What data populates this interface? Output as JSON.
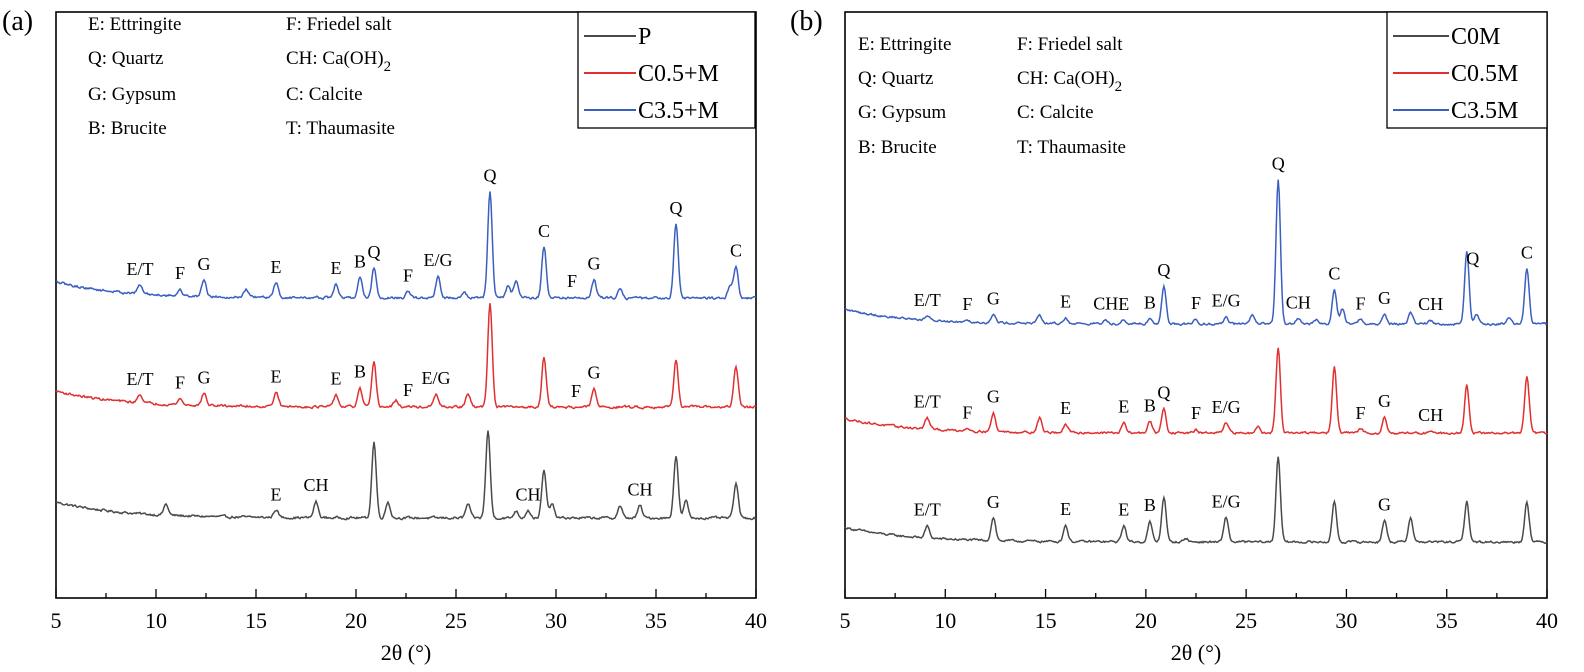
{
  "chart_data": [
    {
      "panel": "(a)",
      "type": "line",
      "xlabel": "2θ (°)",
      "ylabel": "",
      "xlim": [
        5,
        40
      ],
      "xticks": [
        5,
        10,
        15,
        20,
        25,
        30,
        35,
        40
      ],
      "phase_key": [
        "E: Ettringite",
        "F: Friedel salt",
        "Q: Quartz",
        "CH: Ca(OH)",
        "G: Gypsum",
        "C: Calcite",
        "B: Brucite",
        "T: Thaumasite"
      ],
      "subscript_2": "2",
      "legend": [
        "P",
        "C0.5+M",
        "C3.5+M"
      ],
      "series": [
        {
          "name": "P",
          "color": "#4a4a4a",
          "baseline": 0,
          "peaks": [
            [
              10.5,
              2.2
            ],
            [
              16.0,
              1.6
            ],
            [
              18.0,
              3.2
            ],
            [
              20.9,
              15.2
            ],
            [
              21.6,
              3.2
            ],
            [
              25.6,
              2.8
            ],
            [
              26.6,
              17.5
            ],
            [
              28.0,
              1.4
            ],
            [
              28.6,
              1.6
            ],
            [
              29.4,
              9.5
            ],
            [
              29.8,
              2.9
            ],
            [
              33.2,
              2.4
            ],
            [
              34.2,
              2.5
            ],
            [
              36.0,
              12.5
            ],
            [
              36.5,
              3.4
            ],
            [
              39.0,
              7.0
            ]
          ],
          "labels": [
            [
              "E",
              16.0
            ],
            [
              "CH",
              18.0
            ],
            [
              "CH",
              28.6
            ],
            [
              "CH",
              34.2
            ]
          ]
        },
        {
          "name": "C0.5+M",
          "color": "#e03030",
          "baseline": 10.5,
          "peaks": [
            [
              9.2,
              1.8
            ],
            [
              11.2,
              1.2
            ],
            [
              12.4,
              2.5
            ],
            [
              16.0,
              3.0
            ],
            [
              19.0,
              2.4
            ],
            [
              20.2,
              3.6
            ],
            [
              20.9,
              8.8
            ],
            [
              22.0,
              1.3
            ],
            [
              24.0,
              2.5
            ],
            [
              25.6,
              2.7
            ],
            [
              26.7,
              21.0
            ],
            [
              29.4,
              10.0
            ],
            [
              31.9,
              3.6
            ],
            [
              36.0,
              9.5
            ],
            [
              39.0,
              8.2
            ]
          ],
          "labels": [
            [
              "E/T",
              9.2
            ],
            [
              "F",
              11.2
            ],
            [
              "G",
              12.4
            ],
            [
              "E",
              16.0
            ],
            [
              "E",
              19.0
            ],
            [
              "B",
              20.2
            ],
            [
              "E/G",
              24.0
            ],
            [
              "F",
              22.6
            ],
            [
              "F",
              31.0
            ],
            [
              "G",
              31.9
            ]
          ]
        },
        {
          "name": "C3.5+M",
          "color": "#3a5fc0",
          "baseline": 22.0,
          "peaks": [
            [
              9.2,
              1.8
            ],
            [
              11.2,
              1.2
            ],
            [
              12.4,
              3.5
            ],
            [
              14.5,
              1.6
            ],
            [
              16.0,
              3.0
            ],
            [
              19.0,
              2.8
            ],
            [
              20.2,
              4.2
            ],
            [
              20.9,
              6.0
            ],
            [
              22.6,
              1.2
            ],
            [
              24.1,
              4.3
            ],
            [
              25.4,
              1.3
            ],
            [
              26.7,
              21.5
            ],
            [
              27.6,
              2.4
            ],
            [
              28.0,
              3.5
            ],
            [
              29.4,
              10.5
            ],
            [
              31.9,
              3.6
            ],
            [
              33.2,
              2.0
            ],
            [
              36.0,
              15.0
            ],
            [
              38.7,
              2.4
            ],
            [
              39.0,
              6.2
            ]
          ],
          "labels": [
            [
              "E/T",
              9.2
            ],
            [
              "F",
              11.2
            ],
            [
              "G",
              12.4
            ],
            [
              "E",
              16.0
            ],
            [
              "E",
              19.0
            ],
            [
              "B",
              20.2
            ],
            [
              "Q",
              20.9
            ],
            [
              "F",
              22.6
            ],
            [
              "E/G",
              24.1
            ],
            [
              "Q",
              26.7
            ],
            [
              "C",
              29.4
            ],
            [
              "F",
              30.8
            ],
            [
              "G",
              31.9
            ],
            [
              "Q",
              36.0
            ],
            [
              "C",
              39.0
            ]
          ]
        }
      ]
    },
    {
      "panel": "(b)",
      "type": "line",
      "xlabel": "2θ (°)",
      "ylabel": "",
      "xlim": [
        5,
        40
      ],
      "xticks": [
        5,
        10,
        15,
        20,
        25,
        30,
        35,
        40
      ],
      "phase_key": [
        "E: Ettringite",
        "F: Friedel salt",
        "Q: Quartz",
        "CH: Ca(OH)",
        "G: Gypsum",
        "C: Calcite",
        "B: Brucite",
        "T: Thaumasite"
      ],
      "subscript_2": "2",
      "legend": [
        "C0M",
        "C0.5M",
        "C3.5M"
      ],
      "series": [
        {
          "name": "C0M",
          "color": "#4a4a4a",
          "baseline": 0,
          "peaks": [
            [
              9.1,
              2.6
            ],
            [
              12.4,
              5.2
            ],
            [
              16.0,
              3.6
            ],
            [
              18.9,
              3.6
            ],
            [
              20.2,
              4.4
            ],
            [
              20.9,
              10.0
            ],
            [
              22.0,
              0.8
            ],
            [
              24.0,
              5.5
            ],
            [
              26.6,
              19.0
            ],
            [
              29.4,
              9.0
            ],
            [
              31.9,
              4.8
            ],
            [
              33.2,
              5.5
            ],
            [
              36.0,
              9.0
            ],
            [
              39.0,
              9.0
            ]
          ],
          "labels": [
            [
              "E/T",
              9.1
            ],
            [
              "G",
              12.4
            ],
            [
              "E",
              16.0
            ],
            [
              "E",
              18.9
            ],
            [
              "B",
              20.2
            ],
            [
              "E/G",
              24.0
            ],
            [
              "G",
              31.9
            ]
          ]
        },
        {
          "name": "C0.5M",
          "color": "#e03030",
          "baseline": 10.5,
          "peaks": [
            [
              9.1,
              2.5
            ],
            [
              11.1,
              0.7
            ],
            [
              12.4,
              4.0
            ],
            [
              14.7,
              3.2
            ],
            [
              16.0,
              1.7
            ],
            [
              18.9,
              2.1
            ],
            [
              20.2,
              2.5
            ],
            [
              20.9,
              5.5
            ],
            [
              22.5,
              0.6
            ],
            [
              24.0,
              2.2
            ],
            [
              25.6,
              1.7
            ],
            [
              26.6,
              19.0
            ],
            [
              29.4,
              14.5
            ],
            [
              30.7,
              1.0
            ],
            [
              31.9,
              3.4
            ],
            [
              34.2,
              0.6
            ],
            [
              36.0,
              10.5
            ],
            [
              39.0,
              12.5
            ]
          ],
          "labels": [
            [
              "E/T",
              9.1
            ],
            [
              "F",
              11.1
            ],
            [
              "G",
              12.4
            ],
            [
              "E",
              16.0
            ],
            [
              "E",
              18.9
            ],
            [
              "B",
              20.2
            ],
            [
              "Q",
              20.9
            ],
            [
              "F",
              22.5
            ],
            [
              "E/G",
              24.0
            ],
            [
              "F",
              30.7
            ],
            [
              "G",
              31.9
            ],
            [
              "CH",
              34.2
            ]
          ]
        },
        {
          "name": "C3.5M",
          "color": "#3a5fc0",
          "baseline": 21.0,
          "peaks": [
            [
              9.1,
              0.8
            ],
            [
              11.1,
              0.5
            ],
            [
              12.4,
              1.7
            ],
            [
              14.7,
              1.6
            ],
            [
              16.0,
              1.2
            ],
            [
              18.0,
              0.8
            ],
            [
              18.9,
              1.1
            ],
            [
              20.2,
              1.1
            ],
            [
              20.9,
              8.3
            ],
            [
              22.5,
              1.0
            ],
            [
              24.0,
              1.6
            ],
            [
              25.3,
              1.8
            ],
            [
              26.6,
              32.0
            ],
            [
              27.6,
              1.3
            ],
            [
              28.5,
              1.0
            ],
            [
              29.4,
              7.7
            ],
            [
              29.8,
              3.3
            ],
            [
              30.7,
              1.2
            ],
            [
              31.9,
              2.0
            ],
            [
              33.2,
              2.6
            ],
            [
              34.2,
              0.8
            ],
            [
              36.0,
              16.0
            ],
            [
              36.5,
              2.0
            ],
            [
              38.1,
              1.4
            ],
            [
              39.0,
              12.5
            ]
          ],
          "labels": [
            [
              "E/T",
              9.1
            ],
            [
              "F",
              11.1
            ],
            [
              "G",
              12.4
            ],
            [
              "E",
              16.0
            ],
            [
              "CH",
              18.0
            ],
            [
              "E",
              18.9
            ],
            [
              "B",
              20.2
            ],
            [
              "Q",
              20.9
            ],
            [
              "F",
              22.5
            ],
            [
              "E/G",
              24.0
            ],
            [
              "Q",
              26.6
            ],
            [
              "CH",
              27.6
            ],
            [
              "C",
              29.4
            ],
            [
              "F",
              30.7
            ],
            [
              "G",
              31.9
            ],
            [
              "CH",
              34.2
            ],
            [
              "Q",
              36.3
            ],
            [
              "C",
              39.0
            ]
          ]
        }
      ]
    }
  ]
}
